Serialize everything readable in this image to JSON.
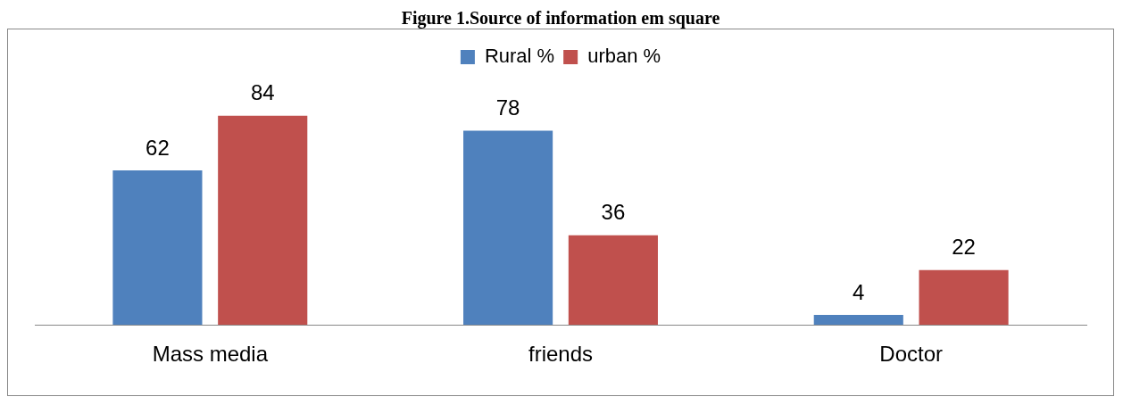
{
  "chart_data": {
    "type": "bar",
    "title": "Figure 1.Source of information em square",
    "categories": [
      "Mass media",
      "friends",
      "Doctor"
    ],
    "series": [
      {
        "name": "Rural %",
        "color": "#4f81bd",
        "values": [
          62,
          78,
          4
        ]
      },
      {
        "name": "urban %",
        "color": "#c0504d",
        "values": [
          84,
          36,
          22
        ]
      }
    ],
    "data_labels": true,
    "legend": "top",
    "grid": false
  }
}
